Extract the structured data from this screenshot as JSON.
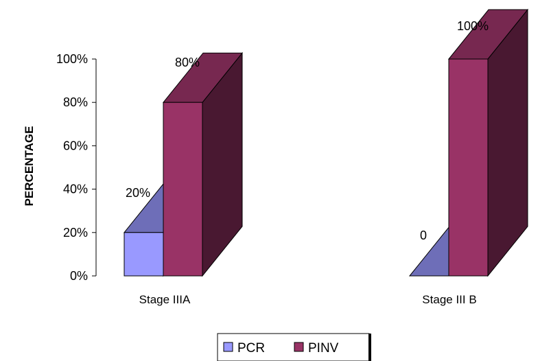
{
  "chart_data": {
    "type": "bar",
    "style": "3d-column",
    "categories": [
      "Stage IIIA",
      "Stage III B"
    ],
    "series": [
      {
        "name": "PCR",
        "values": [
          20,
          0
        ],
        "data_labels": [
          "20%",
          "0"
        ],
        "color": "#9999ff"
      },
      {
        "name": "PINV",
        "values": [
          80,
          100
        ],
        "data_labels": [
          "80%",
          "100%"
        ],
        "color": "#993366"
      }
    ],
    "ylabel": "PERCENTAGE",
    "ylim": [
      0,
      100
    ],
    "yticks": [
      0,
      20,
      40,
      60,
      80,
      100
    ],
    "ytick_labels": [
      "0%",
      "20%",
      "40%",
      "60%",
      "80%",
      "100%"
    ],
    "grid": false,
    "legend": {
      "position": "bottom",
      "entries": [
        "PCR",
        "PINV"
      ]
    }
  }
}
